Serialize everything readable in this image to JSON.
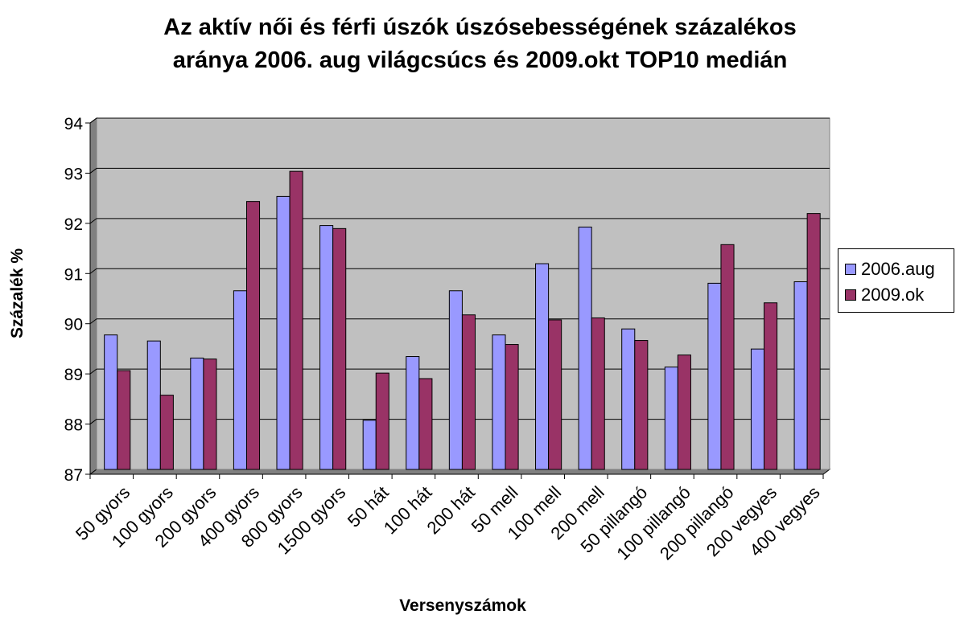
{
  "chart_data": {
    "type": "bar",
    "title_line1": "Az aktív női és férfi úszók úszósebességének százalékos",
    "title_line2": "aránya  2006. aug világcsúcs és 2009.okt TOP10 medián",
    "xlabel": "Versenyszámok",
    "ylabel": "Százalék %",
    "ylim": [
      87,
      94
    ],
    "yticks": [
      87,
      88,
      89,
      90,
      91,
      92,
      93,
      94
    ],
    "grid": true,
    "legend_position": "right",
    "categories": [
      "50 gyors",
      "100 gyors",
      "200 gyors",
      "400 gyors",
      "800 gyors",
      "1500 gyors",
      "50 hát",
      "100 hát",
      "200 hát",
      "50 mell",
      "100 mell",
      "200 mell",
      "50 pillangó",
      "100 pillangó",
      "200 pillangó",
      "200 vegyes",
      "400 vegyes"
    ],
    "series": [
      {
        "name": "2006.aug",
        "color": "#9999ff",
        "values": [
          89.68,
          89.56,
          89.22,
          90.56,
          92.44,
          91.86,
          87.98,
          89.25,
          90.56,
          89.68,
          91.1,
          91.83,
          89.8,
          89.04,
          90.71,
          89.4,
          90.74
        ]
      },
      {
        "name": "2009.ok",
        "color": "#993366",
        "values": [
          88.97,
          88.48,
          89.2,
          92.34,
          92.94,
          91.8,
          88.92,
          88.81,
          90.08,
          89.49,
          89.98,
          90.02,
          89.57,
          89.28,
          91.48,
          90.32,
          92.1
        ]
      }
    ],
    "plot_background": "#c0c0c0"
  }
}
